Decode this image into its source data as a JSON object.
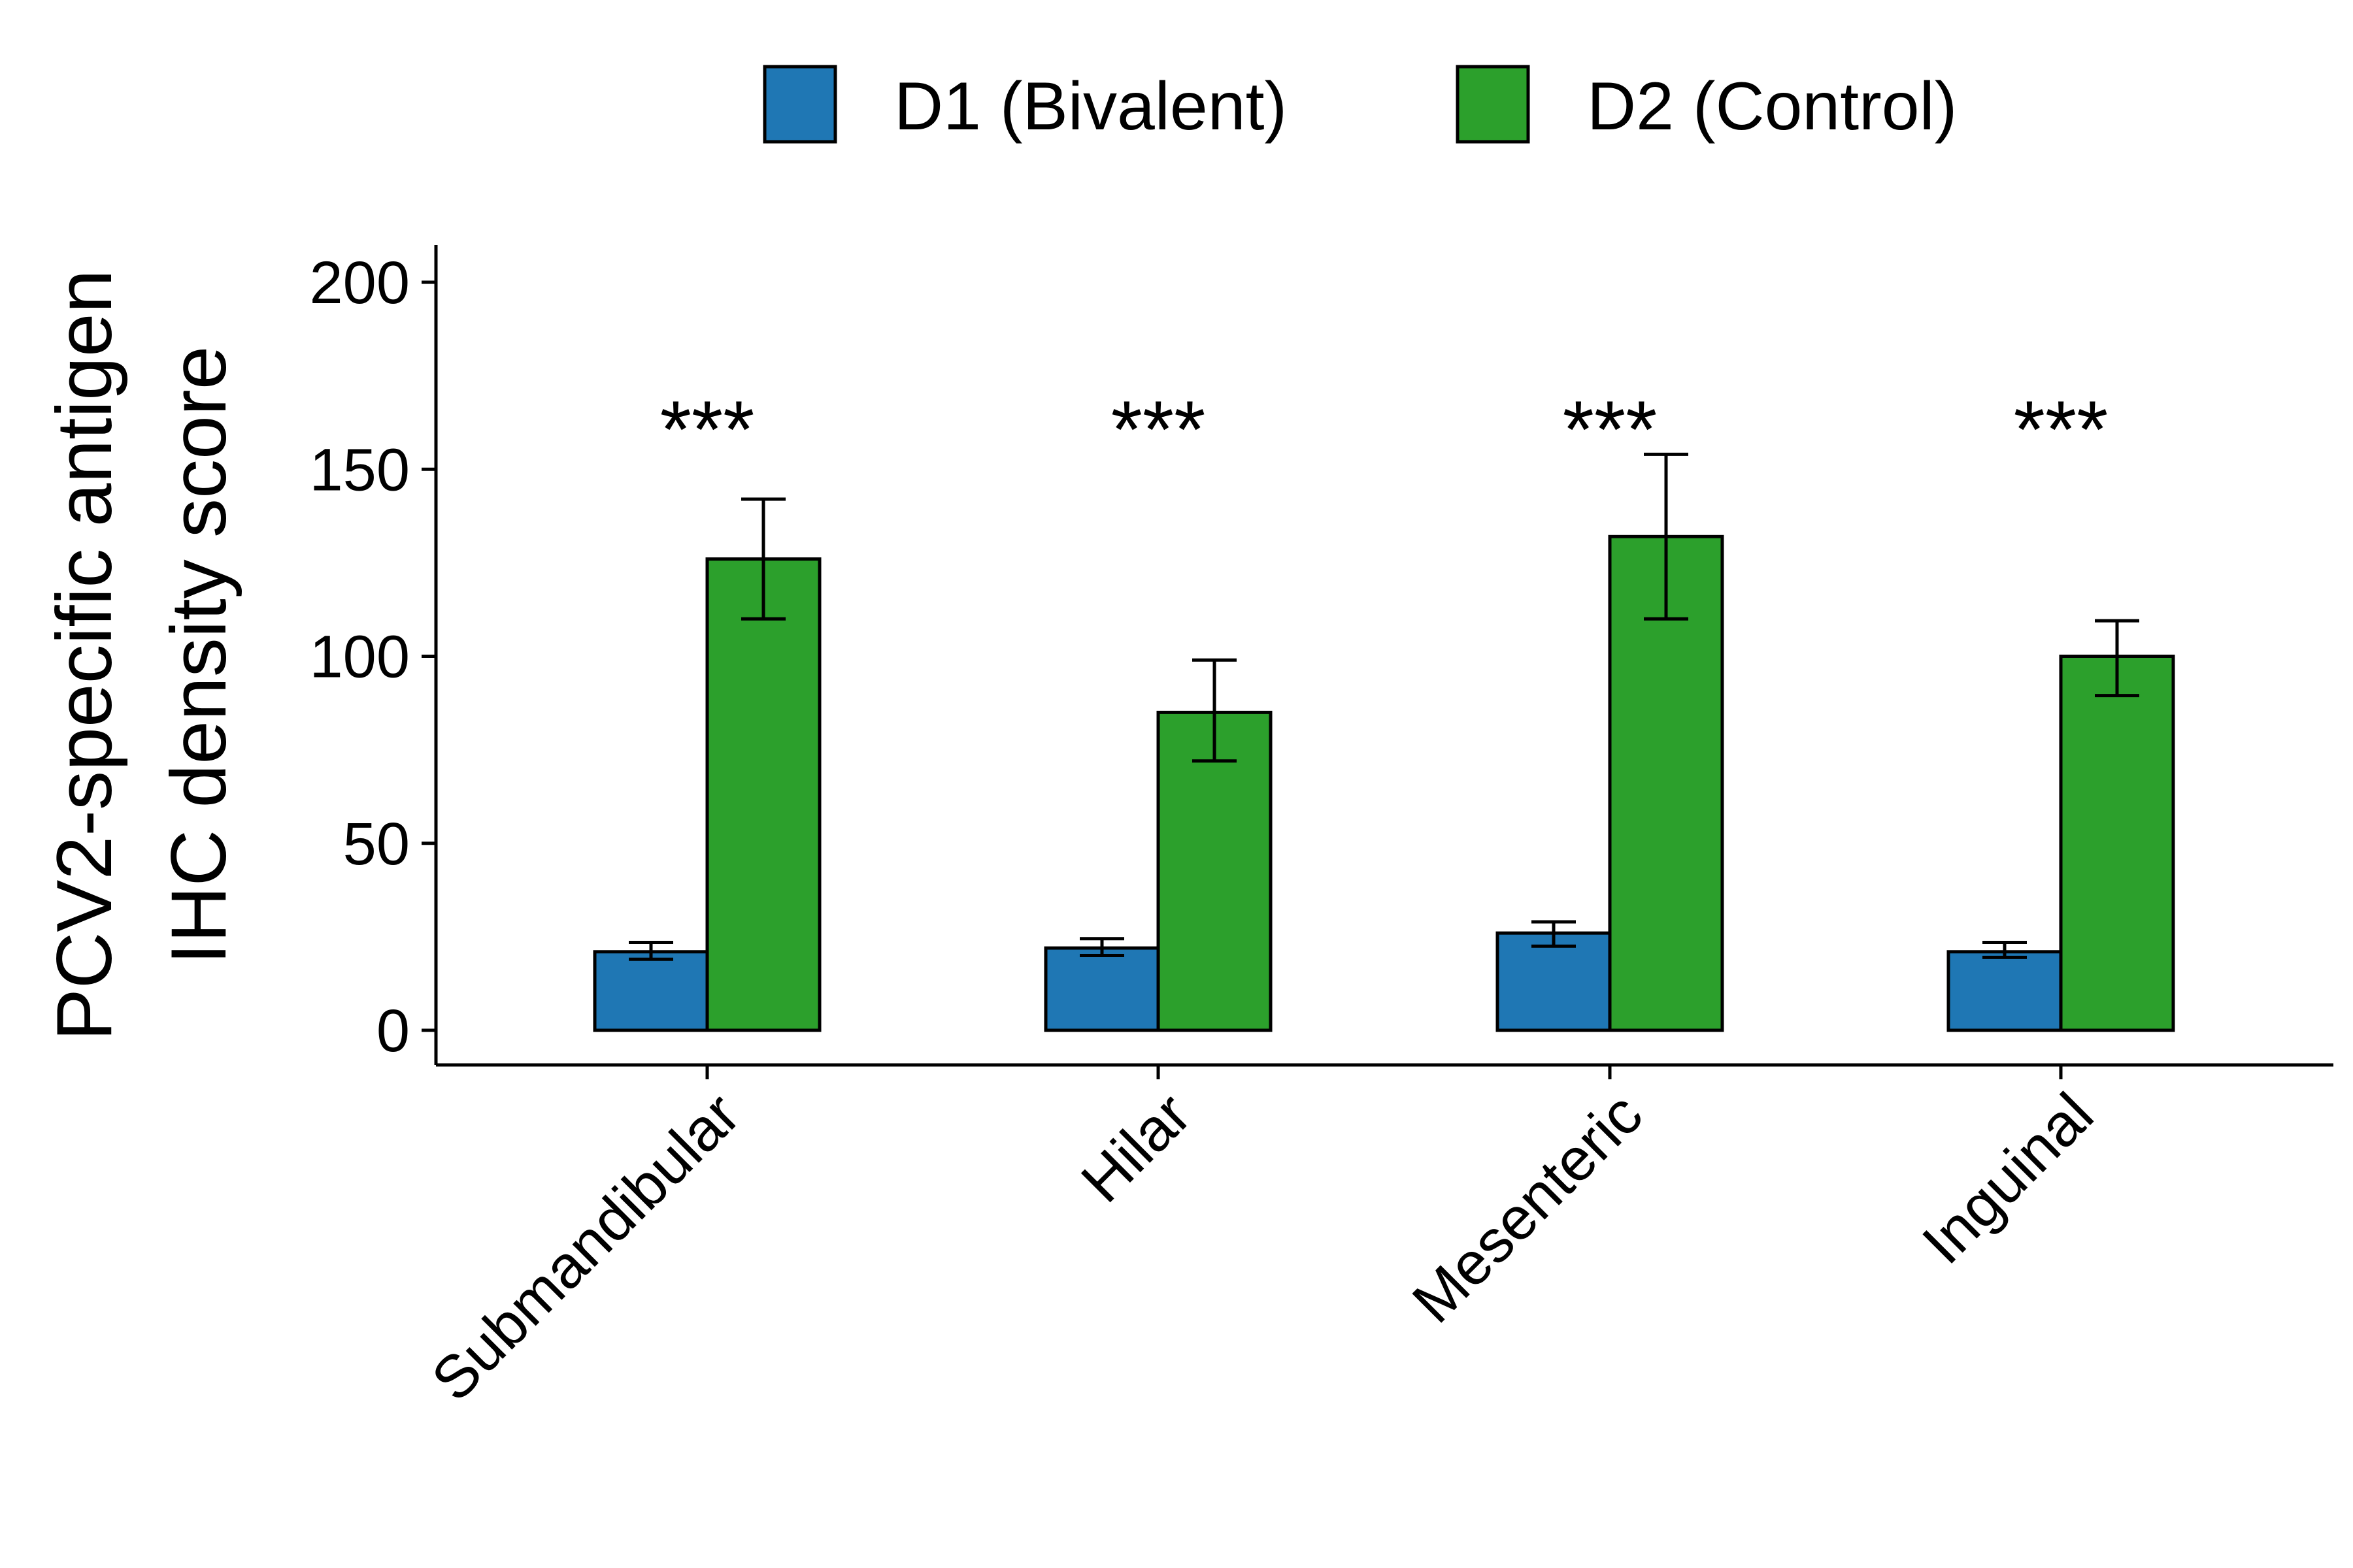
{
  "chart_data": {
    "type": "bar",
    "title": "",
    "xlabel": "",
    "ylabel_lines": [
      "PCV2-specific antigen",
      "IHC density score"
    ],
    "categories": [
      "Submandibular",
      "Hilar",
      "Mesenteric",
      "Inguinal"
    ],
    "series": [
      {
        "name": "D1 (Bivalent)",
        "color": "#1f77b4",
        "values": [
          21,
          22,
          26,
          21
        ],
        "error_low": [
          19,
          20,
          22.5,
          19.5
        ],
        "error_high": [
          23.5,
          24.5,
          29,
          23.5
        ]
      },
      {
        "name": "D2 (Control)",
        "color": "#2ca02c",
        "values": [
          126,
          85,
          132,
          100
        ],
        "error_low": [
          110,
          72,
          110,
          89.5
        ],
        "error_high": [
          142,
          99,
          154,
          109.5
        ]
      }
    ],
    "significance": [
      "***",
      "***",
      "***",
      "***"
    ],
    "yticks": [
      0,
      50,
      100,
      150,
      200
    ],
    "ylim": [
      -10,
      210
    ],
    "legend_position": "top",
    "grid": false
  }
}
